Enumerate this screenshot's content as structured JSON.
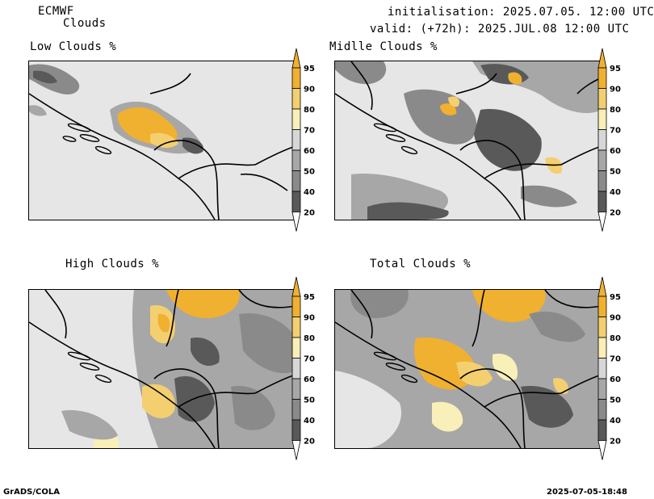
{
  "header": {
    "model": "ECMWF",
    "product": "Clouds",
    "init": "initialisation: 2025.07.05. 12:00 UTC",
    "valid": "valid: (+72h): 2025.JUL.08 12:00 UTC"
  },
  "panels": [
    {
      "id": "low",
      "title": "Low Clouds %"
    },
    {
      "id": "middle",
      "title": "Midlle Clouds %"
    },
    {
      "id": "high",
      "title": "High Clouds %"
    },
    {
      "id": "total",
      "title": "Total Clouds %"
    }
  ],
  "colorbar": {
    "levels": [
      "95",
      "90",
      "80",
      "70",
      "60",
      "50",
      "40",
      "20"
    ],
    "colors": [
      "#f0b030",
      "#f4cf70",
      "#f9efb8",
      "#d7d7d7",
      "#a7a7a7",
      "#8a8a8a",
      "#595959"
    ]
  },
  "footer": {
    "left": "GrADS/COLA",
    "right": "2025-07-05-18:48"
  }
}
